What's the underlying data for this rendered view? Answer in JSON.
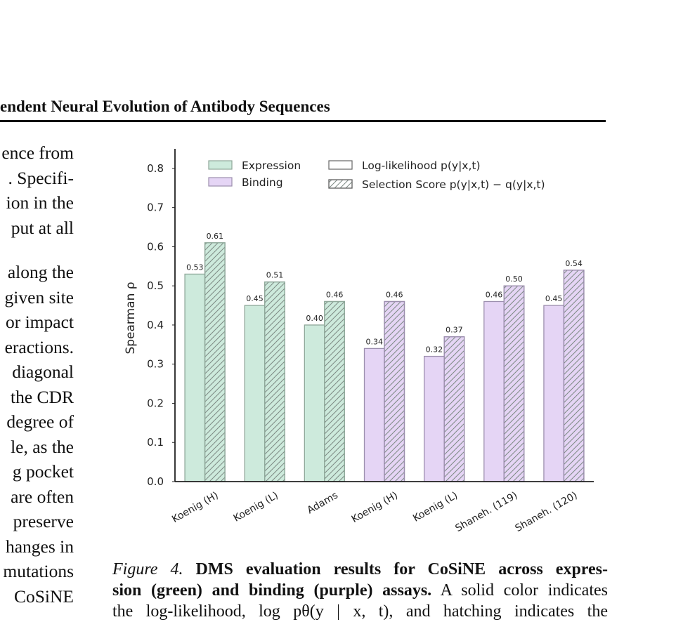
{
  "header": {
    "title": "endent Neural Evolution of Antibody Sequences"
  },
  "left_text": {
    "para1": [
      "ence from",
      ". Specifi-",
      "ion in the",
      "put at all"
    ],
    "para2": [
      "along the",
      "given site",
      "or impact",
      "eractions.",
      "diagonal",
      "the CDR",
      "degree of",
      "le, as the",
      "g pocket",
      "are often",
      "preserve",
      "hanges in",
      "mutations",
      "CoSiNE"
    ]
  },
  "caption": {
    "label": "Figure 4.",
    "bold1": "DMS evaluation results for CoSiNE across expres-",
    "bold2": "sion (green) and binding (purple) assays.",
    "line2_rest": "A solid color indicates",
    "line3": "the log-likelihood, log pθ(y | x, t), and hatching indicates the"
  },
  "colors": {
    "expression": "#cdeadc",
    "binding": "#e5d5f5",
    "edge": "#888888"
  },
  "chart_data": {
    "type": "bar",
    "categories": [
      "Koenig (H)",
      "Koenig (L)",
      "Adams",
      "Koenig (H)",
      "Koenig (L)",
      "Shaneh. (119)",
      "Shaneh. (120)"
    ],
    "assay": [
      "Expression",
      "Expression",
      "Expression",
      "Binding",
      "Binding",
      "Binding",
      "Binding"
    ],
    "series": [
      {
        "name": "Log-likelihood p(y|x,t)",
        "values": [
          0.53,
          0.45,
          0.4,
          0.34,
          0.32,
          0.46,
          0.45
        ]
      },
      {
        "name": "Selection Score p(y|x,t) − q(y|x,t)",
        "values": [
          0.61,
          0.51,
          0.46,
          0.46,
          0.37,
          0.5,
          0.54
        ]
      }
    ],
    "bar_labels": [
      [
        "0.53",
        "0.45",
        "0.40",
        "0.34",
        "0.32",
        "0.46",
        "0.45"
      ],
      [
        "0.61",
        "0.51",
        "0.46",
        "0.46",
        "0.37",
        "0.50",
        "0.54"
      ]
    ],
    "ylabel": "Spearman ρ",
    "ylim": [
      0,
      0.85
    ],
    "yticks": [
      "0.0",
      "0.1",
      "0.2",
      "0.3",
      "0.4",
      "0.5",
      "0.6",
      "0.7",
      "0.8"
    ],
    "legend": [
      {
        "label": "Expression",
        "style": "solid-green"
      },
      {
        "label": "Binding",
        "style": "solid-purple"
      },
      {
        "label": "Log-likelihood p(y|x,t)",
        "style": "outline"
      },
      {
        "label": "Selection Score p(y|x,t) − q(y|x,t)",
        "style": "hatched-outline"
      }
    ],
    "legend_position": "top",
    "grid": false
  }
}
